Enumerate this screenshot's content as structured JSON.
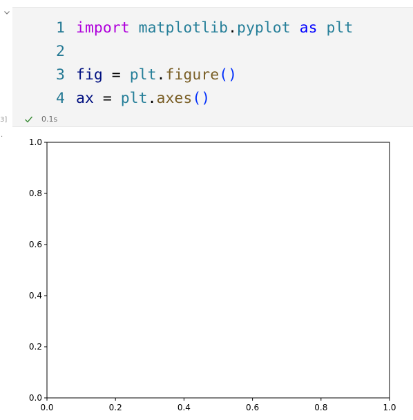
{
  "cell": {
    "execution_count_label": "3]",
    "code_lines": [
      {
        "number": "1",
        "tokens": [
          {
            "text": "import",
            "kind": "kw-import"
          },
          {
            "text": " ",
            "kind": "op"
          },
          {
            "text": "matplotlib",
            "kind": "mod"
          },
          {
            "text": ".",
            "kind": "dot"
          },
          {
            "text": "pyplot",
            "kind": "mod"
          },
          {
            "text": " ",
            "kind": "op"
          },
          {
            "text": "as",
            "kind": "kw"
          },
          {
            "text": " ",
            "kind": "op"
          },
          {
            "text": "plt",
            "kind": "mod"
          }
        ]
      },
      {
        "number": "2",
        "tokens": []
      },
      {
        "number": "3",
        "tokens": [
          {
            "text": "fig",
            "kind": "var"
          },
          {
            "text": " = ",
            "kind": "op"
          },
          {
            "text": "plt",
            "kind": "mod"
          },
          {
            "text": ".",
            "kind": "dot"
          },
          {
            "text": "figure",
            "kind": "fn"
          },
          {
            "text": "()",
            "kind": "paren"
          }
        ]
      },
      {
        "number": "4",
        "tokens": [
          {
            "text": "ax",
            "kind": "var"
          },
          {
            "text": " = ",
            "kind": "op"
          },
          {
            "text": "plt",
            "kind": "mod"
          },
          {
            "text": ".",
            "kind": "dot"
          },
          {
            "text": "axes",
            "kind": "fn"
          },
          {
            "text": "()",
            "kind": "paren"
          }
        ]
      }
    ],
    "status": {
      "icon": "check-icon",
      "color": "#388a34",
      "time": "0.1s"
    }
  },
  "output": {
    "marker": ".",
    "chart_data": {
      "type": "line",
      "series": [],
      "xlim": [
        0.0,
        1.0
      ],
      "ylim": [
        0.0,
        1.0
      ],
      "x_ticks": [
        "0.0",
        "0.2",
        "0.4",
        "0.6",
        "0.8",
        "1.0"
      ],
      "y_ticks": [
        "0.0",
        "0.2",
        "0.4",
        "0.6",
        "0.8",
        "1.0"
      ],
      "title": "",
      "xlabel": "",
      "ylabel": "",
      "grid": false
    }
  }
}
